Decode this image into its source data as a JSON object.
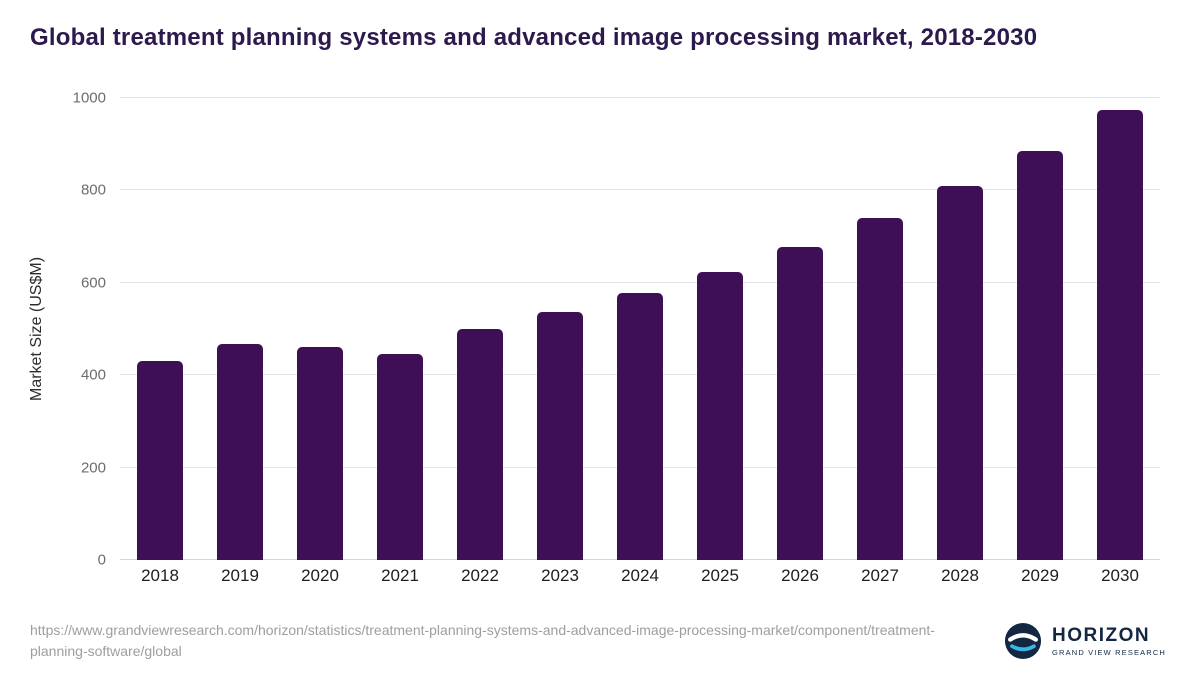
{
  "title": "Global treatment planning systems and advanced image processing market, 2018-2030",
  "chart_data": {
    "type": "bar",
    "title": "Global treatment planning systems and advanced image processing market, 2018-2030",
    "categories": [
      "2018",
      "2019",
      "2020",
      "2021",
      "2022",
      "2023",
      "2024",
      "2025",
      "2026",
      "2027",
      "2028",
      "2029",
      "2030"
    ],
    "values": [
      430,
      468,
      461,
      447,
      500,
      537,
      578,
      624,
      678,
      740,
      810,
      885,
      975
    ],
    "xlabel": "",
    "ylabel": "Market Size (US$M)",
    "ylim": [
      0,
      1000
    ],
    "yticks": [
      0,
      200,
      400,
      600,
      800,
      1000
    ],
    "bar_color": "#3e0f55",
    "grid": "horizontal",
    "legend": "none"
  },
  "footer": {
    "source_url": "https://www.grandviewresearch.com/horizon/statistics/treatment-planning-systems-and-advanced-image-processing-market/component/treatment-planning-software/global",
    "logo": {
      "name": "HORIZON",
      "subtitle": "GRAND VIEW RESEARCH"
    }
  }
}
